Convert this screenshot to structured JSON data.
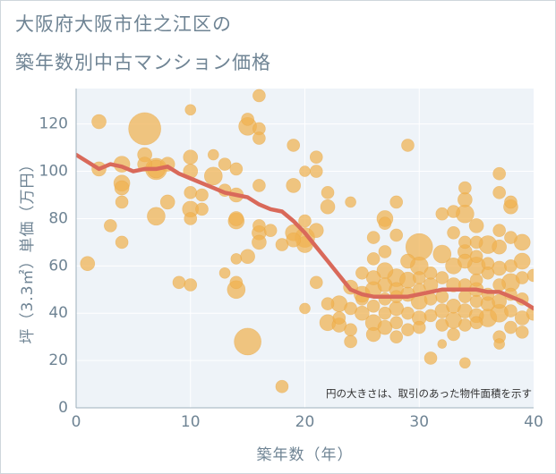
{
  "title_lines": [
    "大阪府大阪市住之江区の",
    "築年数別中古マンション価格"
  ],
  "chart_data": {
    "type": "scatter",
    "xlabel": "築年数（年）",
    "ylabel": "坪（3.3㎡）単価（万円）",
    "xlim": [
      0,
      40
    ],
    "ylim": [
      0,
      135
    ],
    "xticks": [
      0,
      10,
      20,
      30,
      40
    ],
    "yticks": [
      0,
      20,
      40,
      60,
      80,
      100,
      120
    ],
    "grid": true,
    "annotation": "円の大きさは、取引のあった物件面積を示す",
    "colors": {
      "bubble": "#f0b250",
      "trend": "#d9695a",
      "axis_text": "#6f8494",
      "plot_bg": "#eef3f8",
      "grid": "#ffffff"
    },
    "series": [
      {
        "type": "bubble",
        "points": [
          [
            1,
            61,
            8
          ],
          [
            2,
            121,
            8
          ],
          [
            2,
            101,
            8
          ],
          [
            3,
            77,
            7
          ],
          [
            4,
            70,
            7
          ],
          [
            4,
            103,
            9
          ],
          [
            4,
            95,
            9
          ],
          [
            4,
            93,
            8
          ],
          [
            4,
            87,
            7
          ],
          [
            6,
            118,
            18
          ],
          [
            6,
            107,
            8
          ],
          [
            6,
            103,
            8
          ],
          [
            7,
            101,
            10
          ],
          [
            7,
            81,
            10
          ],
          [
            7,
            101,
            12
          ],
          [
            8,
            103,
            8
          ],
          [
            8,
            87,
            8
          ],
          [
            9,
            53,
            7
          ],
          [
            10,
            126,
            6
          ],
          [
            10,
            106,
            8
          ],
          [
            10,
            100,
            8
          ],
          [
            10,
            91,
            7
          ],
          [
            10,
            84,
            9
          ],
          [
            10,
            80,
            7
          ],
          [
            10,
            52,
            7
          ],
          [
            11,
            90,
            7
          ],
          [
            11,
            84,
            7
          ],
          [
            12,
            107,
            6
          ],
          [
            12,
            98,
            10
          ],
          [
            13,
            103,
            7
          ],
          [
            13,
            92,
            7
          ],
          [
            13,
            57,
            6
          ],
          [
            14,
            101,
            7
          ],
          [
            14,
            90,
            8
          ],
          [
            14,
            80,
            8
          ],
          [
            14,
            79,
            9
          ],
          [
            14,
            63,
            6
          ],
          [
            14,
            53,
            7
          ],
          [
            14,
            50,
            10
          ],
          [
            15,
            122,
            7
          ],
          [
            15,
            119,
            10
          ],
          [
            15,
            64,
            8
          ],
          [
            15,
            28,
            15
          ],
          [
            16,
            132,
            7
          ],
          [
            16,
            118,
            7
          ],
          [
            16,
            114,
            7
          ],
          [
            16,
            94,
            7
          ],
          [
            16,
            77,
            7
          ],
          [
            16,
            74,
            8
          ],
          [
            16,
            70,
            8
          ],
          [
            17,
            75,
            7
          ],
          [
            18,
            69,
            7
          ],
          [
            18,
            9,
            7
          ],
          [
            19,
            111,
            7
          ],
          [
            19,
            94,
            8
          ],
          [
            19,
            74,
            9
          ],
          [
            19,
            71,
            8
          ],
          [
            20,
            100,
            6
          ],
          [
            20,
            79,
            7
          ],
          [
            20,
            72,
            11
          ],
          [
            20,
            69,
            9
          ],
          [
            20,
            42,
            6
          ],
          [
            21,
            106,
            7
          ],
          [
            21,
            100,
            7
          ],
          [
            21,
            75,
            8
          ],
          [
            21,
            53,
            7
          ],
          [
            22,
            91,
            7
          ],
          [
            22,
            85,
            8
          ],
          [
            22,
            36,
            9
          ],
          [
            22,
            44,
            7
          ],
          [
            23,
            44,
            9
          ],
          [
            23,
            38,
            7
          ],
          [
            23,
            35,
            8
          ],
          [
            24,
            87,
            6
          ],
          [
            24,
            51,
            8
          ],
          [
            24,
            42,
            7
          ],
          [
            24,
            33,
            7
          ],
          [
            24,
            28,
            7
          ],
          [
            25,
            57,
            7
          ],
          [
            25,
            48,
            9
          ],
          [
            25,
            46,
            7
          ],
          [
            25,
            40,
            8
          ],
          [
            26,
            72,
            7
          ],
          [
            26,
            63,
            7
          ],
          [
            26,
            55,
            8
          ],
          [
            26,
            50,
            9
          ],
          [
            26,
            43,
            7
          ],
          [
            26,
            36,
            9
          ],
          [
            26,
            31,
            8
          ],
          [
            27,
            80,
            9
          ],
          [
            27,
            78,
            7
          ],
          [
            27,
            66,
            7
          ],
          [
            27,
            58,
            9
          ],
          [
            27,
            52,
            8
          ],
          [
            27,
            46,
            7
          ],
          [
            27,
            40,
            7
          ],
          [
            27,
            34,
            8
          ],
          [
            28,
            87,
            7
          ],
          [
            28,
            73,
            7
          ],
          [
            28,
            55,
            10
          ],
          [
            28,
            50,
            8
          ],
          [
            28,
            47,
            7
          ],
          [
            28,
            42,
            8
          ],
          [
            28,
            36,
            7
          ],
          [
            28,
            30,
            7
          ],
          [
            29,
            111,
            7
          ],
          [
            29,
            62,
            8
          ],
          [
            29,
            54,
            9
          ],
          [
            29,
            48,
            8
          ],
          [
            29,
            40,
            7
          ],
          [
            29,
            33,
            7
          ],
          [
            30,
            68,
            15
          ],
          [
            30,
            60,
            10
          ],
          [
            30,
            55,
            7
          ],
          [
            30,
            50,
            7
          ],
          [
            30,
            45,
            9
          ],
          [
            30,
            38,
            8
          ],
          [
            30,
            34,
            7
          ],
          [
            31,
            57,
            7
          ],
          [
            31,
            52,
            8
          ],
          [
            31,
            46,
            7
          ],
          [
            31,
            39,
            7
          ],
          [
            31,
            21,
            7
          ],
          [
            32,
            82,
            7
          ],
          [
            32,
            65,
            10
          ],
          [
            32,
            55,
            7
          ],
          [
            32,
            47,
            7
          ],
          [
            32,
            41,
            8
          ],
          [
            32,
            35,
            7
          ],
          [
            32,
            27,
            5
          ],
          [
            33,
            83,
            7
          ],
          [
            33,
            74,
            7
          ],
          [
            33,
            60,
            9
          ],
          [
            33,
            52,
            8
          ],
          [
            33,
            43,
            8
          ],
          [
            33,
            37,
            9
          ],
          [
            33,
            31,
            7
          ],
          [
            34,
            93,
            7
          ],
          [
            34,
            88,
            8
          ],
          [
            34,
            82,
            10
          ],
          [
            34,
            70,
            7
          ],
          [
            34,
            66,
            8
          ],
          [
            34,
            62,
            8
          ],
          [
            34,
            52,
            7
          ],
          [
            34,
            47,
            7
          ],
          [
            34,
            41,
            8
          ],
          [
            34,
            35,
            7
          ],
          [
            34,
            19,
            6
          ],
          [
            35,
            77,
            8
          ],
          [
            35,
            70,
            7
          ],
          [
            35,
            64,
            7
          ],
          [
            35,
            60,
            10
          ],
          [
            35,
            54,
            7
          ],
          [
            35,
            50,
            8
          ],
          [
            35,
            45,
            7
          ],
          [
            35,
            39,
            8
          ],
          [
            35,
            36,
            7
          ],
          [
            36,
            69,
            10
          ],
          [
            36,
            61,
            7
          ],
          [
            36,
            57,
            7
          ],
          [
            36,
            48,
            7
          ],
          [
            36,
            44,
            8
          ],
          [
            36,
            38,
            10
          ],
          [
            37,
            99,
            7
          ],
          [
            37,
            91,
            7
          ],
          [
            37,
            75,
            7
          ],
          [
            37,
            68,
            8
          ],
          [
            37,
            59,
            8
          ],
          [
            37,
            52,
            7
          ],
          [
            37,
            45,
            8
          ],
          [
            37,
            40,
            10
          ],
          [
            37,
            30,
            7
          ],
          [
            37,
            27,
            6
          ],
          [
            38,
            87,
            7
          ],
          [
            38,
            85,
            8
          ],
          [
            38,
            72,
            7
          ],
          [
            38,
            60,
            7
          ],
          [
            38,
            53,
            10
          ],
          [
            38,
            48,
            7
          ],
          [
            38,
            41,
            7
          ],
          [
            38,
            34,
            7
          ],
          [
            39,
            70,
            9
          ],
          [
            39,
            62,
            9
          ],
          [
            39,
            55,
            7
          ],
          [
            39,
            46,
            7
          ],
          [
            39,
            38,
            8
          ],
          [
            39,
            32,
            7
          ],
          [
            40,
            56,
            7
          ],
          [
            40,
            40,
            8
          ]
        ]
      },
      {
        "type": "line",
        "x": [
          0,
          1,
          2,
          3,
          4,
          5,
          6,
          7,
          8,
          9,
          10,
          11,
          12,
          13,
          14,
          15,
          16,
          17,
          18,
          19,
          20,
          21,
          22,
          23,
          24,
          25,
          26,
          27,
          28,
          29,
          30,
          31,
          32,
          33,
          34,
          35,
          36,
          37,
          38,
          39,
          40
        ],
        "y": [
          107,
          104,
          101,
          103,
          102,
          100,
          101,
          101,
          102,
          99,
          97,
          95,
          93,
          91,
          90,
          89,
          86,
          84,
          83,
          79,
          74,
          68,
          62,
          56,
          50,
          48,
          47,
          47,
          47,
          47,
          48,
          49,
          50,
          50,
          50,
          50,
          49,
          49,
          47,
          45,
          42
        ]
      }
    ]
  }
}
